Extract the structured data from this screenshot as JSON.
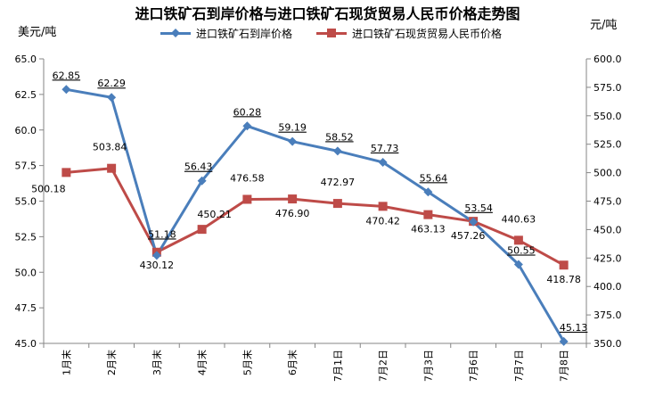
{
  "chart_data": {
    "type": "line",
    "title": "进口铁矿石到岸价格与进口铁矿石现货贸易人民币价格走势图",
    "ylabel_left": "美元/吨",
    "ylabel_right": "元/吨",
    "categories": [
      "1月末",
      "2月末",
      "3月末",
      "4月末",
      "5月末",
      "6月末",
      "7月1日",
      "7月2日",
      "7月3日",
      "7月6日",
      "7月7日",
      "7月8日"
    ],
    "ylim_left": [
      45.0,
      65.0
    ],
    "yticks_left": [
      "45.0",
      "47.5",
      "50.0",
      "52.5",
      "55.0",
      "57.5",
      "60.0",
      "62.5",
      "65.0"
    ],
    "ylim_right": [
      350.0,
      600.0
    ],
    "yticks_right": [
      "350.0",
      "375.0",
      "400.0",
      "425.0",
      "450.0",
      "475.0",
      "500.0",
      "525.0",
      "550.0",
      "575.0",
      "600.0"
    ],
    "grid": false,
    "legend": "top",
    "series": [
      {
        "name": "进口铁矿石到岸价格",
        "axis": "left",
        "color": "#4a7ebb",
        "marker": "diamond",
        "values": [
          62.85,
          62.29,
          51.18,
          56.43,
          60.28,
          59.19,
          58.52,
          57.73,
          55.64,
          53.54,
          50.55,
          45.13
        ],
        "labels": [
          "62.85",
          "62.29",
          "51.18",
          "56.43",
          "60.28",
          "59.19",
          "58.52",
          "57.73",
          "55.64",
          "53.54",
          "50.55",
          "45.13"
        ]
      },
      {
        "name": "进口铁矿石现货贸易人民币价格",
        "axis": "right",
        "color": "#be4b48",
        "marker": "square",
        "values": [
          500.18,
          503.84,
          430.12,
          450.21,
          476.58,
          476.9,
          472.97,
          470.42,
          463.13,
          457.26,
          440.63,
          418.78
        ],
        "labels": [
          "500.18",
          "503.84",
          "430.12",
          "450.21",
          "476.58",
          "476.90",
          "472.97",
          "470.42",
          "463.13",
          "457.26",
          "440.63",
          "418.78"
        ]
      }
    ]
  }
}
